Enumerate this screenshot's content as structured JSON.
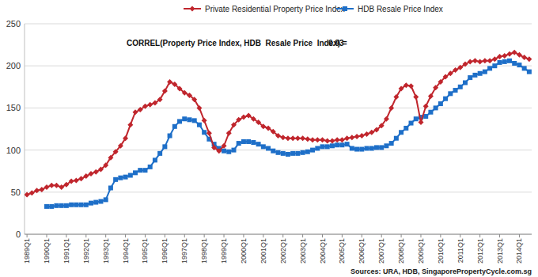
{
  "chart_data": {
    "type": "line",
    "annotations": [
      "CORREL(Property Price Index, HDB  Resale Price  Index) =",
      "0.93"
    ],
    "source": "Sources: URA, HDB, SingaporePropertyCycle.com.sg",
    "categories": [
      "1989Q1",
      null,
      null,
      null,
      "1990Q1",
      null,
      null,
      null,
      "1991Q1",
      null,
      null,
      null,
      "1992Q1",
      null,
      null,
      null,
      "1993Q1",
      null,
      null,
      null,
      "1994Q1",
      null,
      null,
      null,
      "1995Q1",
      null,
      null,
      null,
      "1996Q1",
      null,
      null,
      null,
      "1997Q1",
      null,
      null,
      null,
      "1998Q1",
      null,
      null,
      null,
      "1999Q1",
      null,
      null,
      null,
      "2000Q1",
      null,
      null,
      null,
      "2001Q1",
      null,
      null,
      null,
      "2002Q1",
      null,
      null,
      null,
      "2003Q1",
      null,
      null,
      null,
      "2004Q1",
      null,
      null,
      null,
      "2005Q1",
      null,
      null,
      null,
      "2006Q1",
      null,
      null,
      null,
      "2007Q1",
      null,
      null,
      null,
      "2008Q1",
      null,
      null,
      null,
      "2009Q1",
      null,
      null,
      null,
      "2010Q1",
      null,
      null,
      null,
      "2011Q1",
      null,
      null,
      null,
      "2012Q1",
      null,
      null,
      null,
      "2013Q1",
      null,
      null,
      null,
      "2014Q1",
      null,
      null
    ],
    "series": [
      {
        "name": "Private Residential Property Price Index",
        "color": "#c0262d",
        "marker": "diamond",
        "values": [
          47,
          49,
          52,
          53,
          56,
          58,
          58,
          56,
          59,
          63,
          64,
          66,
          69,
          72,
          74,
          77,
          82,
          91,
          98,
          105,
          114,
          130,
          145,
          148,
          152,
          154,
          156,
          160,
          170,
          181,
          178,
          173,
          168,
          165,
          160,
          150,
          135,
          120,
          103,
          99,
          105,
          120,
          130,
          136,
          139,
          141,
          137,
          133,
          128,
          126,
          122,
          117,
          115,
          114,
          114,
          114,
          114,
          113,
          112,
          112,
          112,
          111,
          111,
          112,
          112,
          114,
          115,
          116,
          117,
          119,
          121,
          124,
          129,
          137,
          150,
          163,
          173,
          177,
          176,
          163,
          133,
          152,
          164,
          174,
          181,
          187,
          191,
          195,
          198,
          202,
          205,
          206,
          205,
          206,
          206,
          208,
          211,
          212,
          214,
          216,
          213,
          210,
          208
        ]
      },
      {
        "name": "HDB Resale Price Index",
        "color": "#1e6fc8",
        "marker": "square",
        "values": [
          null,
          null,
          null,
          null,
          33,
          33,
          34,
          34,
          34,
          35,
          35,
          35,
          35,
          37,
          38,
          39,
          41,
          55,
          65,
          67,
          68,
          70,
          73,
          76,
          76,
          80,
          88,
          96,
          104,
          117,
          128,
          134,
          137,
          136,
          135,
          130,
          121,
          113,
          107,
          102,
          99,
          98,
          100,
          108,
          110,
          110,
          109,
          107,
          104,
          102,
          99,
          97,
          96,
          95,
          96,
          96,
          97,
          98,
          100,
          102,
          104,
          104,
          105,
          106,
          106,
          107,
          102,
          101,
          101,
          102,
          102,
          103,
          103,
          105,
          108,
          114,
          121,
          126,
          132,
          137,
          139,
          140,
          145,
          150,
          155,
          161,
          167,
          171,
          175,
          180,
          186,
          189,
          191,
          193,
          197,
          200,
          204,
          205,
          206,
          203,
          201,
          197,
          193
        ]
      }
    ],
    "ylim": [
      0,
      250
    ],
    "yticks": [
      0,
      50,
      100,
      150,
      200,
      250
    ],
    "grid": true,
    "legend": "top"
  }
}
